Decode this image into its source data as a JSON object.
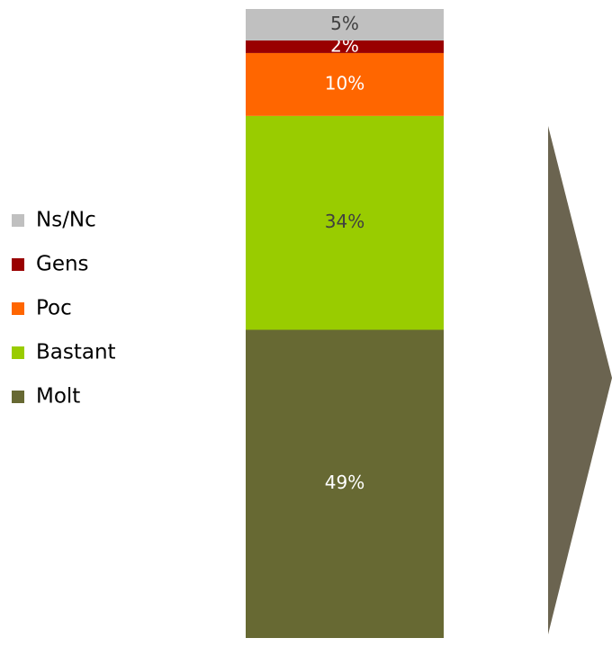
{
  "chart_data": {
    "type": "stacked_bar",
    "series": [
      {
        "name": "Molt",
        "color": "#676933",
        "values": [
          49
        ],
        "value_labels": [
          "49%"
        ],
        "label_color": "#ffffff"
      },
      {
        "name": "Bastant",
        "color": "#99cc00",
        "values": [
          34
        ],
        "value_labels": [
          "34%"
        ],
        "label_color": "#404040"
      },
      {
        "name": "Poc",
        "color": "#ff6600",
        "values": [
          10
        ],
        "value_labels": [
          "10%"
        ],
        "label_color": "#ffffff"
      },
      {
        "name": "Gens",
        "color": "#990000",
        "values": [
          2
        ],
        "value_labels": [
          "2%"
        ],
        "label_color": "#ffffff"
      },
      {
        "name": "Ns/Nc",
        "color": "#c0c0c0",
        "values": [
          5
        ],
        "value_labels": [
          "5%"
        ],
        "label_color": "#404040"
      }
    ],
    "ylim": [
      0,
      100
    ]
  }
}
